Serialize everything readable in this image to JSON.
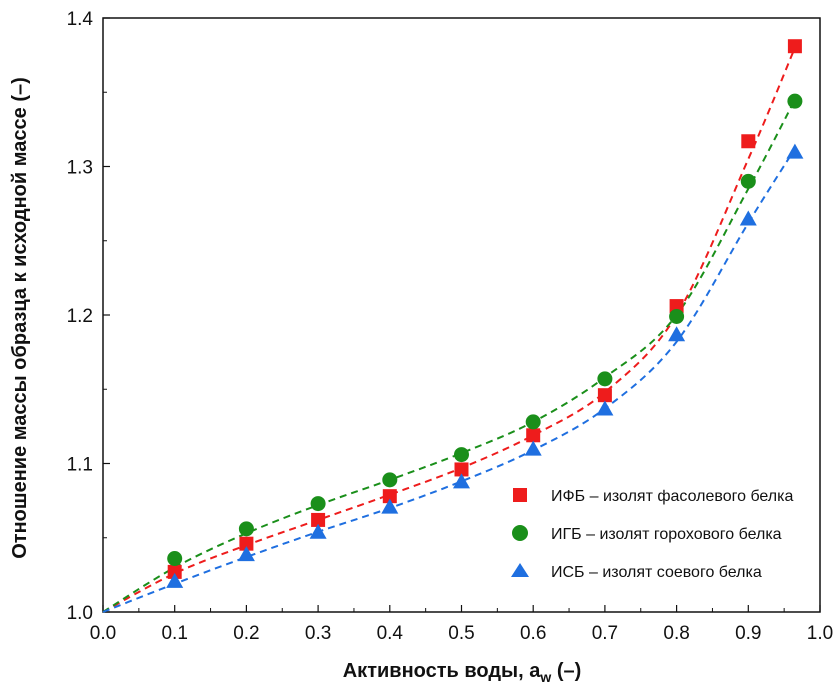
{
  "chart_data": {
    "type": "scatter",
    "xlabel_main": "Активность воды, a",
    "xlabel_sub": "w",
    "xlabel_tail": " (–)",
    "ylabel": "Отношение массы образца к исходной массе (–)",
    "xlim": [
      0.0,
      1.0
    ],
    "ylim": [
      1.0,
      1.4
    ],
    "x_ticks": [
      "0.0",
      "0.1",
      "0.2",
      "0.3",
      "0.4",
      "0.5",
      "0.6",
      "0.7",
      "0.8",
      "0.9",
      "1.0"
    ],
    "y_ticks": [
      "1.0",
      "1.1",
      "1.2",
      "1.3",
      "1.4"
    ],
    "grid": false,
    "legend_position": "bottom-right",
    "series": [
      {
        "name": "ИФБ – изолят фасолевого белка",
        "marker": "square",
        "color": "#ee1c1c",
        "x": [
          0.1,
          0.2,
          0.3,
          0.4,
          0.5,
          0.6,
          0.7,
          0.8,
          0.9,
          0.965
        ],
        "y": [
          1.027,
          1.046,
          1.062,
          1.078,
          1.096,
          1.119,
          1.146,
          1.206,
          1.317,
          1.381
        ]
      },
      {
        "name": "ИГБ – изолят горохового белка",
        "marker": "circle",
        "color": "#1a8f1a",
        "x": [
          0.1,
          0.2,
          0.3,
          0.4,
          0.5,
          0.6,
          0.7,
          0.8,
          0.9,
          0.965
        ],
        "y": [
          1.036,
          1.056,
          1.073,
          1.089,
          1.106,
          1.128,
          1.157,
          1.199,
          1.29,
          1.344
        ]
      },
      {
        "name": "ИСБ – изолят соевого белка",
        "marker": "triangle",
        "color": "#1f6fe0",
        "x": [
          0.1,
          0.2,
          0.3,
          0.4,
          0.5,
          0.6,
          0.7,
          0.8,
          0.9,
          0.965
        ],
        "y": [
          1.021,
          1.039,
          1.054,
          1.071,
          1.088,
          1.11,
          1.137,
          1.187,
          1.265,
          1.31
        ]
      }
    ],
    "fit_curves": [
      {
        "color": "#ee1c1c",
        "x": [
          0.0,
          0.1,
          0.2,
          0.3,
          0.4,
          0.5,
          0.6,
          0.7,
          0.8,
          0.9,
          0.965
        ],
        "y": [
          1.0,
          1.026,
          1.045,
          1.062,
          1.079,
          1.097,
          1.119,
          1.148,
          1.2,
          1.305,
          1.38
        ]
      },
      {
        "color": "#1a8f1a",
        "x": [
          0.0,
          0.1,
          0.2,
          0.3,
          0.4,
          0.5,
          0.6,
          0.7,
          0.8,
          0.9,
          0.965
        ],
        "y": [
          1.0,
          1.03,
          1.053,
          1.072,
          1.089,
          1.107,
          1.128,
          1.158,
          1.2,
          1.285,
          1.345
        ]
      },
      {
        "color": "#1f6fe0",
        "x": [
          0.0,
          0.1,
          0.2,
          0.3,
          0.4,
          0.5,
          0.6,
          0.7,
          0.8,
          0.9,
          0.965
        ],
        "y": [
          1.0,
          1.019,
          1.037,
          1.054,
          1.07,
          1.088,
          1.109,
          1.137,
          1.182,
          1.262,
          1.312
        ]
      }
    ]
  }
}
